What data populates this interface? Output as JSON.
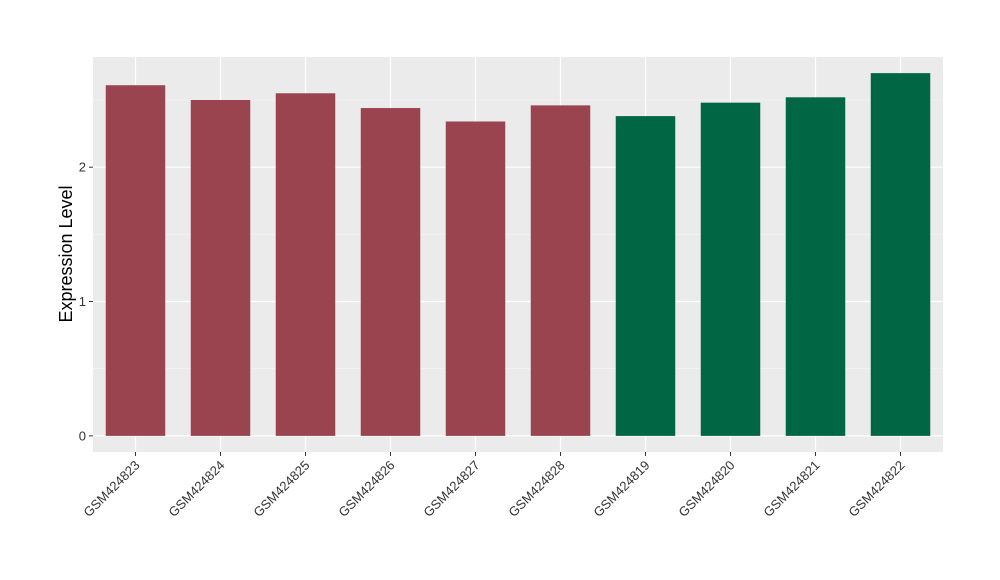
{
  "chart_data": {
    "type": "bar",
    "title": "",
    "xlabel": "",
    "ylabel": "Expression Level",
    "categories": [
      "GSM424823",
      "GSM424824",
      "GSM424825",
      "GSM424826",
      "GSM424827",
      "GSM424828",
      "GSM424819",
      "GSM424820",
      "GSM424821",
      "GSM424822"
    ],
    "values": [
      2.61,
      2.5,
      2.55,
      2.44,
      2.34,
      2.46,
      2.38,
      2.48,
      2.52,
      2.7
    ],
    "bar_colors": [
      "#99444f",
      "#99444f",
      "#99444f",
      "#99444f",
      "#99444f",
      "#99444f",
      "#006644",
      "#006644",
      "#006644",
      "#006644"
    ],
    "ylim": [
      -0.12,
      2.82
    ],
    "yticks": [
      0,
      1,
      2
    ],
    "grid": true,
    "panel_background": "#ebebeb",
    "legend": "none"
  }
}
